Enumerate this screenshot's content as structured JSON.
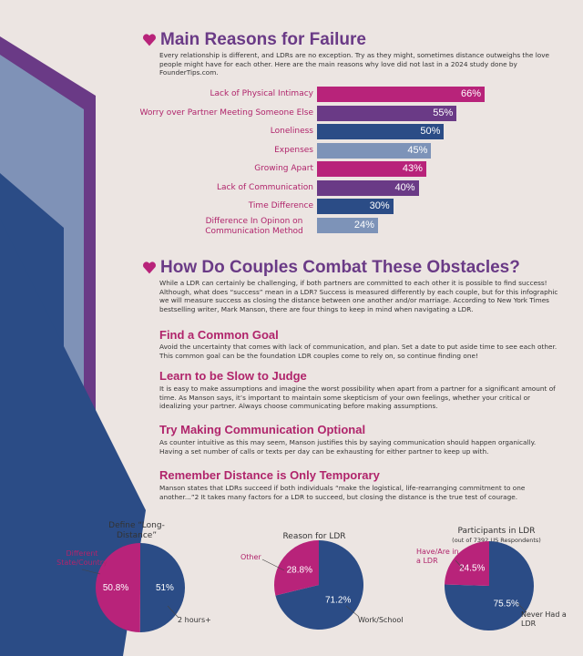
{
  "colors": {
    "magenta": "#b8237a",
    "purple": "#6a3a86",
    "navy": "#2b4c86",
    "grayblue": "#7d93b8",
    "text_pink": "#b0246b"
  },
  "section1": {
    "title": "Main Reasons for Failure",
    "intro": "Every relationship is different, and LDRs are no exception. Try as they might, sometimes distance outweighs the love people might have for each other. Here are the main reasons why love did not last in a 2024 study done by FounderTips.com."
  },
  "section2": {
    "title": "How Do Couples Combat These Obstacles?",
    "intro": "While a LDR can certainly be challenging, if both partners are committed to each other it is possible to find success! Although, what does “success” mean in a LDR? Success is measured differently by each couple, but for this infographic we will measure success as closing the distance between one another and/or marriage. According to New York Times bestselling writer, Mark Manson, there are four things to keep in mind when navigating a LDR.",
    "tips": [
      {
        "heading": "Find a Common Goal",
        "body": "Avoid the uncertainty that comes with lack of communication, and plan. Set a date to put aside time to see each other. This common goal can be the foundation LDR couples come to rely on, so continue finding one!"
      },
      {
        "heading": "Learn to be Slow to Judge",
        "body": "It is easy to make assumptions and imagine the worst possibility when apart from a partner for a significant amount of time. As Manson says, it’s important to maintain some skepticism of your own feelings, whether your critical or idealizing your partner. Always choose communicating before making assumptions."
      },
      {
        "heading": "Try Making Communication Optional",
        "body": "As counter intuitive as this may seem, Manson justifies this by saying communication should happen organically. Having a set number of calls or texts per day can be exhausting for either partner to keep up with."
      },
      {
        "heading": "Remember Distance is Only Temporary",
        "body": "Manson states that LDRs succeed if both individuals “make the logistical, life-rearranging commitment to one another...”2 It takes many factors for a LDR to succeed, but closing the distance is the true test of courage."
      }
    ]
  },
  "chart_data": [
    {
      "type": "bar",
      "orientation": "horizontal",
      "categories": [
        "Lack of Physical Intimacy",
        "Worry over Partner Meeting Someone Else",
        "Loneliness",
        "Expenses",
        "Growing Apart",
        "Lack of Communication",
        "Time Difference",
        "Difference In Opinon on Communication Method"
      ],
      "values": [
        66,
        55,
        50,
        45,
        43,
        40,
        30,
        24
      ],
      "value_labels": [
        "66%",
        "55%",
        "50%",
        "45%",
        "43%",
        "40%",
        "30%",
        "24%"
      ],
      "bar_colors": [
        "#b8237a",
        "#6a3a86",
        "#2b4c86",
        "#7d93b8",
        "#b8237a",
        "#6a3a86",
        "#2b4c86",
        "#7d93b8"
      ],
      "xlim": [
        0,
        66
      ]
    },
    {
      "type": "pie",
      "title": "Define “Long-Distance”",
      "labels": [
        "2 hours+",
        "Different State/Country"
      ],
      "values": [
        51,
        50.8
      ],
      "value_labels": [
        "51%",
        "50.8%"
      ],
      "colors": [
        "#2b4c86",
        "#b8237a"
      ]
    },
    {
      "type": "pie",
      "title": "Reason for LDR",
      "labels": [
        "Work/School",
        "Other"
      ],
      "values": [
        71.2,
        28.8
      ],
      "value_labels": [
        "71.2%",
        "28.8%"
      ],
      "colors": [
        "#2b4c86",
        "#b8237a"
      ]
    },
    {
      "type": "pie",
      "title": "Participants in LDR",
      "subtitle": "(out of 7392 US Respondents)",
      "labels": [
        "Never Had a LDR",
        "Have/Are in a LDR"
      ],
      "values": [
        75.5,
        24.5
      ],
      "value_labels": [
        "75.5%",
        "24.5%"
      ],
      "colors": [
        "#2b4c86",
        "#b8237a"
      ]
    }
  ]
}
